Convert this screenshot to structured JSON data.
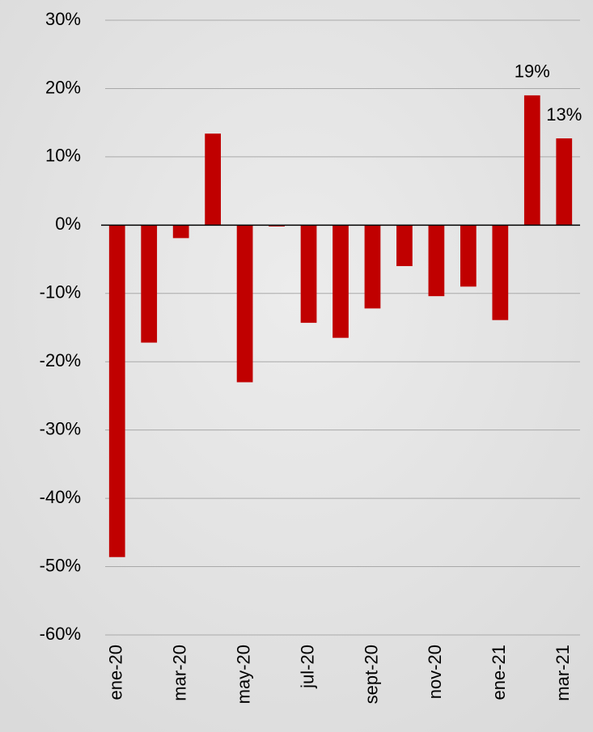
{
  "chart_data": {
    "type": "bar",
    "categories": [
      "ene-20",
      null,
      "mar-20",
      null,
      "may-20",
      null,
      "jul-20",
      null,
      "sept-20",
      null,
      "nov-20",
      null,
      "ene-21",
      null,
      "mar-21"
    ],
    "values": [
      -48.6,
      -17.2,
      -1.9,
      13.4,
      -23,
      -0.2,
      -14.3,
      -16.5,
      -12.2,
      -6,
      -10.4,
      -9,
      -13.9,
      19,
      12.7
    ],
    "value_labels": [
      null,
      null,
      null,
      null,
      null,
      null,
      null,
      null,
      null,
      null,
      null,
      null,
      null,
      "19%",
      "13%"
    ],
    "color": "#c00000",
    "ylim": [
      -60,
      30
    ],
    "yticks": [
      {
        "value": -60,
        "label": "-60%"
      },
      {
        "value": -50,
        "label": "-50%"
      },
      {
        "value": -40,
        "label": "-40%"
      },
      {
        "value": -30,
        "label": "-30%"
      },
      {
        "value": -20,
        "label": "-20%"
      },
      {
        "value": -10,
        "label": "-10%"
      },
      {
        "value": 0,
        "label": "0%"
      },
      {
        "value": 10,
        "label": "10%"
      },
      {
        "value": 20,
        "label": "20%"
      },
      {
        "value": 30,
        "label": "30%"
      }
    ],
    "grid": true
  }
}
